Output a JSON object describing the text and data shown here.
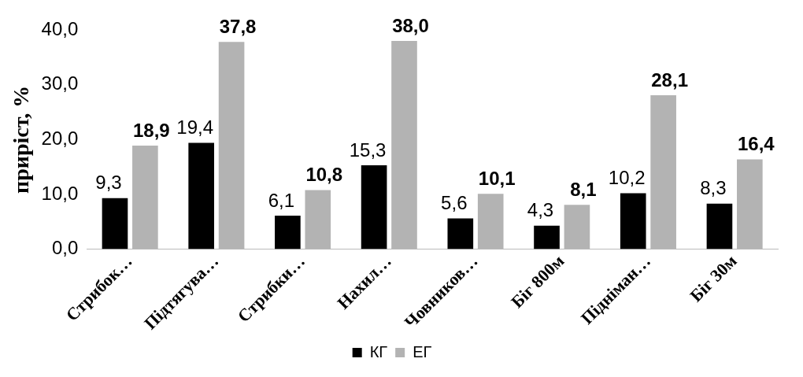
{
  "chart_data": {
    "type": "bar",
    "categories": [
      "Стрибок…",
      "Підтягува…",
      "Стрибки…",
      "Нахил…",
      "Човников…",
      "Біг 800м",
      "Підніман…",
      "Біг 30м"
    ],
    "series": [
      {
        "name": "КГ",
        "color": "#000000",
        "values": [
          9.3,
          19.4,
          6.1,
          15.3,
          5.6,
          4.3,
          10.2,
          8.3
        ],
        "value_labels": [
          "9,3",
          "19,4",
          "6,1",
          "15,3",
          "5,6",
          "4,3",
          "10,2",
          "8,3"
        ]
      },
      {
        "name": "ЕГ",
        "color": "#b3b3b3",
        "values": [
          18.9,
          37.8,
          10.8,
          38.0,
          10.1,
          8.1,
          28.1,
          16.4
        ],
        "value_labels": [
          "18,9",
          "37,8",
          "10,8",
          "38,0",
          "10,1",
          "8,1",
          "28,1",
          "16,4"
        ]
      }
    ],
    "ylabel": "приріст, %",
    "ylim": [
      0,
      40
    ],
    "yticks": [
      {
        "value": 0,
        "label": "0,0"
      },
      {
        "value": 10,
        "label": "10,0"
      },
      {
        "value": 20,
        "label": "20,0"
      },
      {
        "value": 30,
        "label": "30,0"
      },
      {
        "value": 40,
        "label": "40,0"
      }
    ],
    "grid": false,
    "legend": "bottom"
  }
}
